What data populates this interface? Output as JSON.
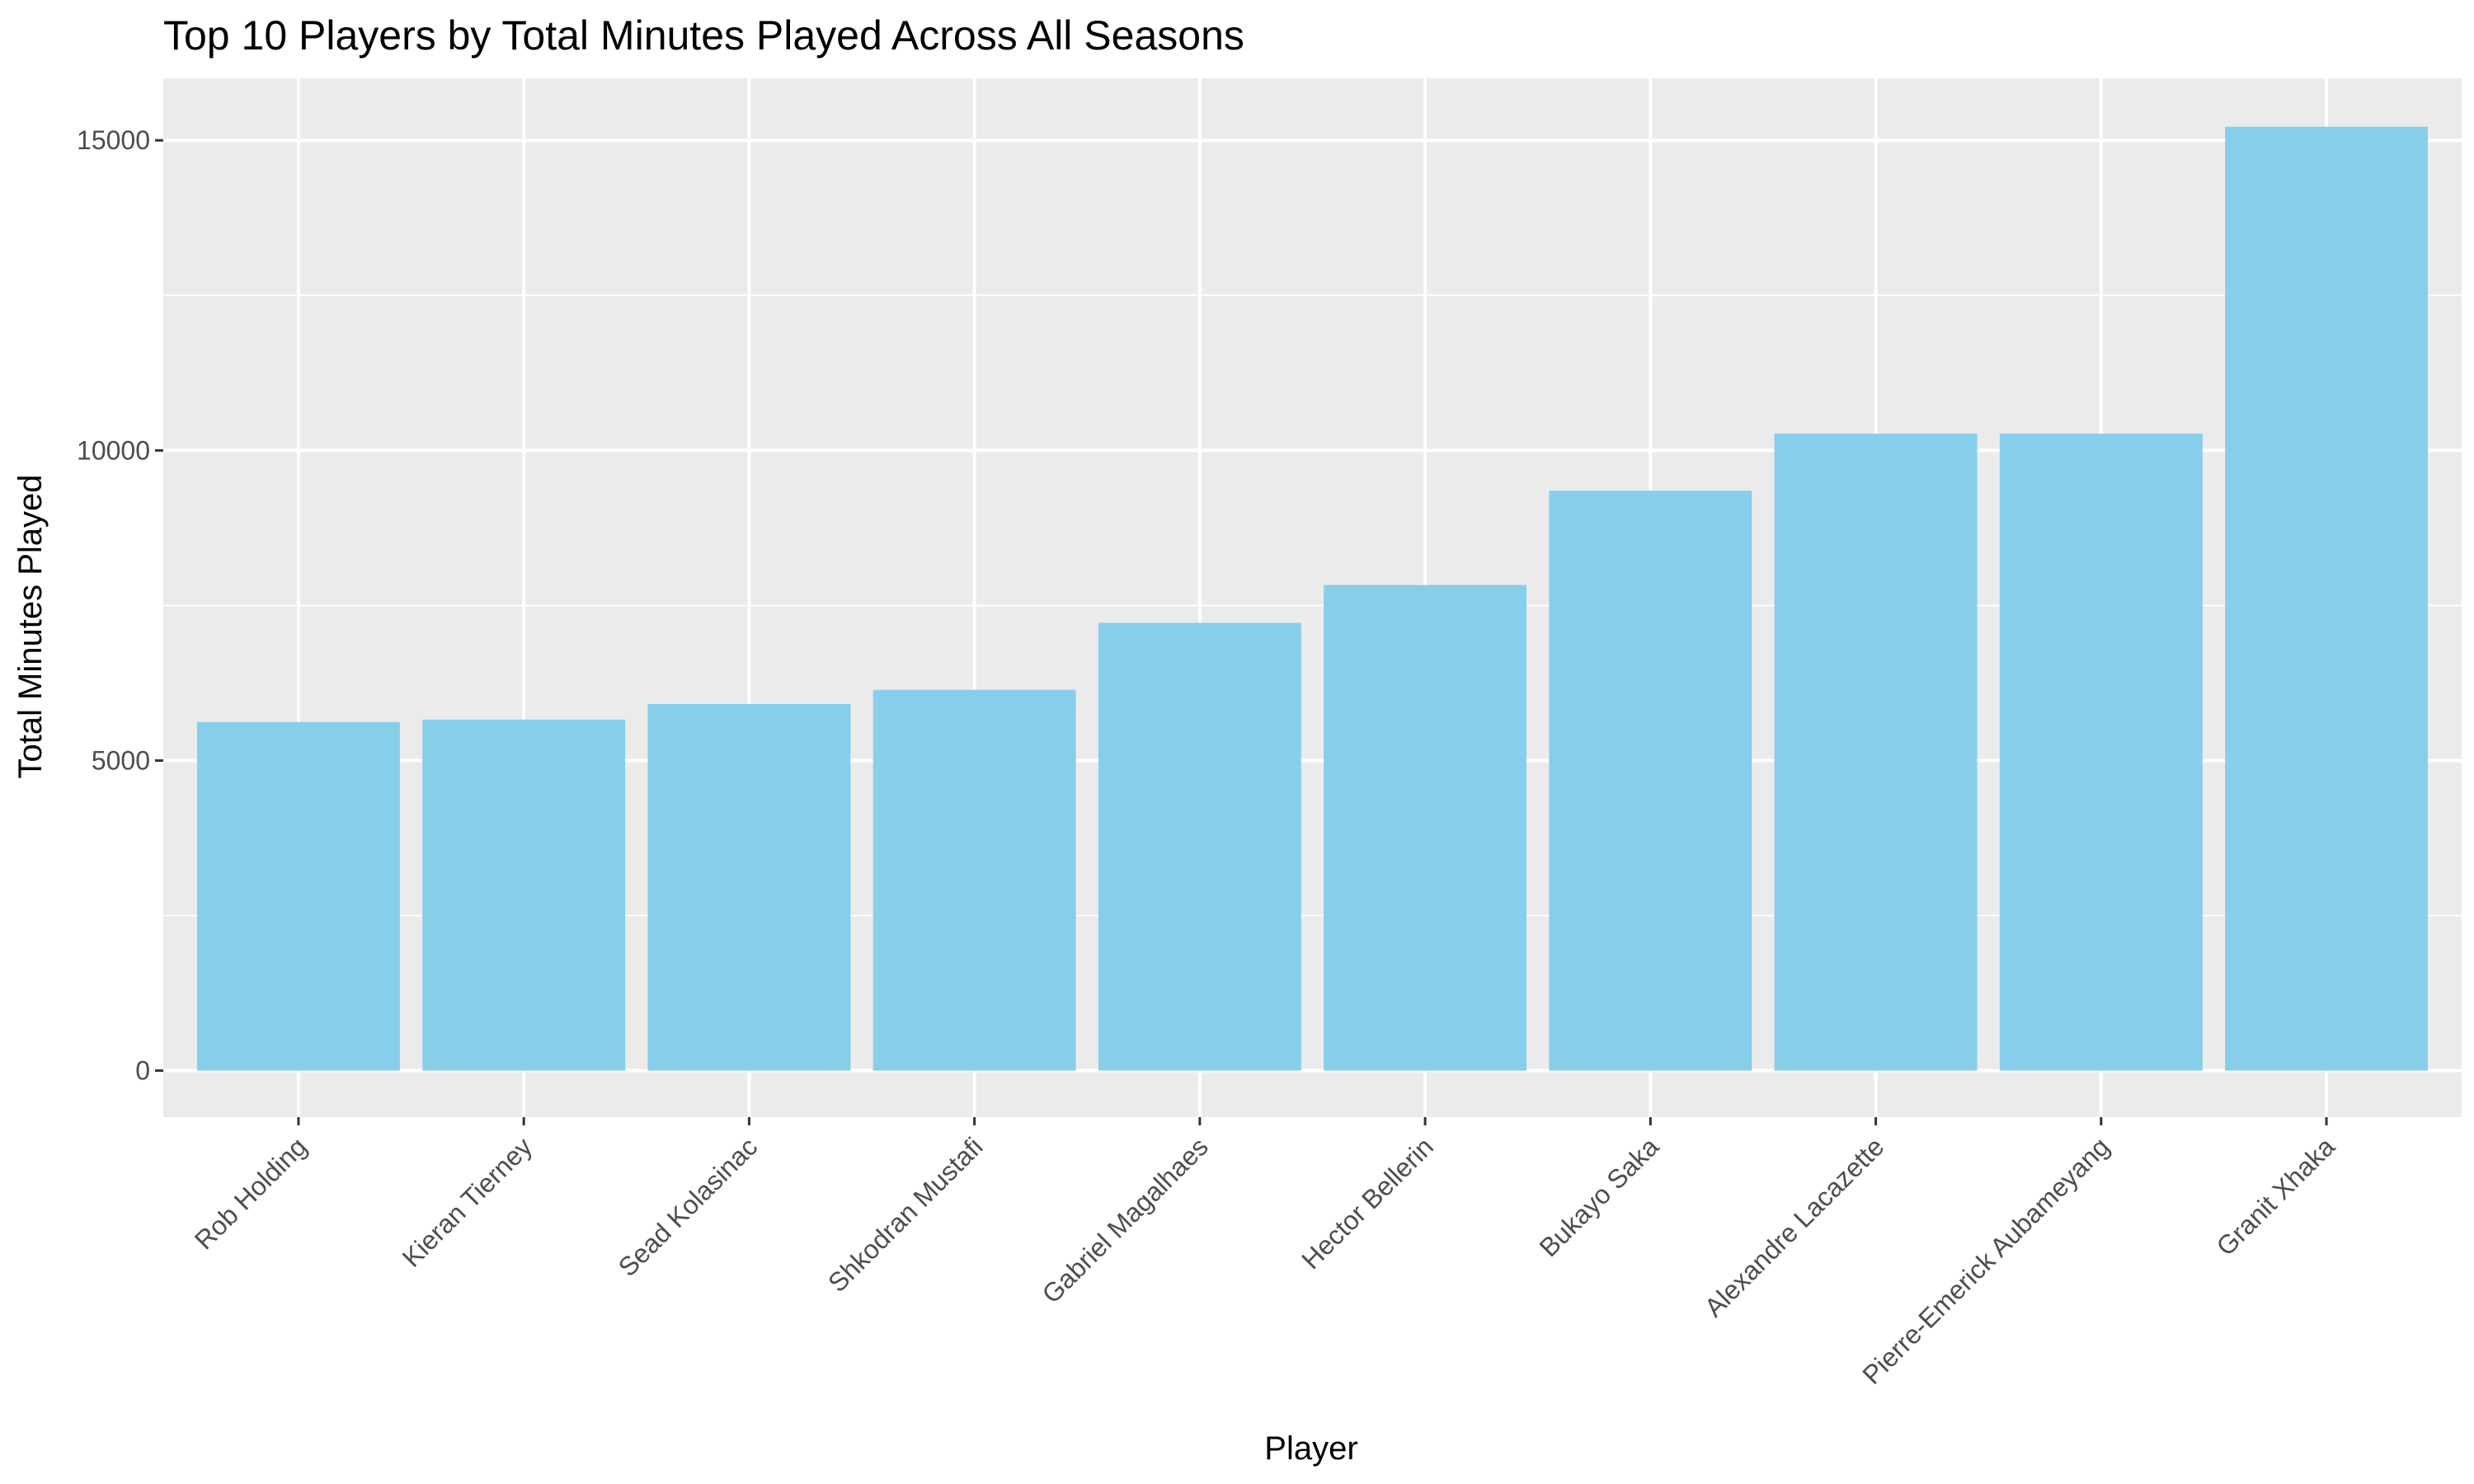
{
  "chart_data": {
    "type": "bar",
    "title": "Top 10 Players by Total Minutes Played Across All Seasons",
    "xlabel": "Player",
    "ylabel": "Total Minutes Played",
    "categories": [
      "Rob Holding",
      "Kieran Tierney",
      "Sead Kolasinac",
      "Shkodran Mustafi",
      "Gabriel Magalhaes",
      "Hector Bellerin",
      "Bukayo Saka",
      "Alexandre Lacazette",
      "Pierre-Emerick Aubameyang",
      "Granit Xhaka"
    ],
    "values": [
      5620,
      5660,
      5910,
      6140,
      7220,
      7830,
      9350,
      10270,
      10270,
      15220
    ],
    "ylim": [
      -750,
      16000
    ],
    "yticks": [
      0,
      5000,
      10000,
      15000
    ],
    "y_tick_labels": [
      "0",
      "5000",
      "10000",
      "15000"
    ],
    "y_minor_ticks": [
      2500,
      7500,
      12500
    ],
    "grid": true,
    "legend": "none",
    "colors": {
      "bar": "#87CEEB",
      "panel": "#EBEBEB",
      "grid": "#FFFFFF",
      "tick_text": "#4D4D4D",
      "tick_mark": "#333333"
    }
  }
}
